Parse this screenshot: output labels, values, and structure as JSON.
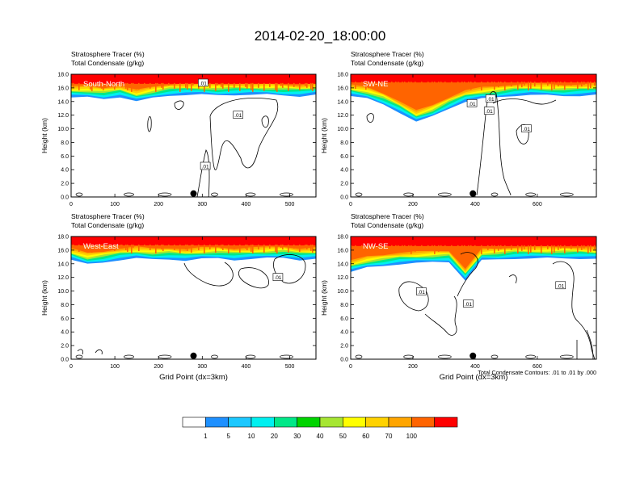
{
  "figure": {
    "title": "2014-02-20_18:00:00",
    "footnote": "Total Condensate Contours: .01 to .01 by .000",
    "xlabel": "Grid Point (dx=3km)"
  },
  "colorbar": {
    "colors": [
      "#ffffff",
      "#1e90ff",
      "#1cc8ff",
      "#00f0f0",
      "#00e888",
      "#00d400",
      "#a6e632",
      "#ffff00",
      "#ffd200",
      "#ffa500",
      "#ff6400",
      "#ff0000"
    ],
    "labels": [
      "1",
      "5",
      "10",
      "20",
      "30",
      "40",
      "50",
      "60",
      "70",
      "100"
    ]
  },
  "chart_data": [
    {
      "type": "heatmap",
      "panel": "South-North",
      "subtitle_1": "Stratosphere Tracer   (%)",
      "subtitle_2": "Total Condensate   (g/kg)",
      "ylabel": "Height (km)",
      "xlabel": "",
      "xlim": [
        0,
        560
      ],
      "ylim": [
        0,
        18
      ],
      "xticks": [
        "0",
        "100",
        "200",
        "300",
        "400",
        "500"
      ],
      "yticks": [
        "0.0",
        "2.0",
        "4.0",
        "6.0",
        "8.0",
        "10.0",
        "12.0",
        "14.0",
        "16.0",
        "18.0"
      ],
      "contour_labels": [
        {
          "text": ".01",
          "x": 302,
          "y": 16.7
        },
        {
          "text": ".01",
          "x": 382,
          "y": 12.0
        },
        {
          "text": ".01",
          "x": 307,
          "y": 4.5
        }
      ],
      "marker_x": 280,
      "tracer_band": {
        "base_km": [
          15.2,
          15.2,
          15.0,
          15.3,
          14.6,
          15.1,
          15.5,
          15.6,
          15.6,
          15.5,
          15.6,
          15.6,
          15.6,
          15.5,
          15.4,
          15.6
        ],
        "red_from_km": 16.6
      }
    },
    {
      "type": "heatmap",
      "panel": "SW-NE",
      "subtitle_1": "Stratosphere Tracer   (%)",
      "subtitle_2": "Total Condensate   (g/kg)",
      "ylabel": "Height (km)",
      "xlabel": "",
      "xlim": [
        0,
        790
      ],
      "ylim": [
        0,
        18
      ],
      "xticks": [
        "0",
        "200",
        "400",
        "600"
      ],
      "yticks": [
        "0.0",
        "2.0",
        "4.0",
        "6.0",
        "8.0",
        "10.0",
        "12.0",
        "14.0",
        "16.0",
        "18.0"
      ],
      "contour_labels": [
        {
          "text": ".01",
          "x": 390,
          "y": 13.7
        },
        {
          "text": ".01",
          "x": 450,
          "y": 14.4
        },
        {
          "text": ".01",
          "x": 445,
          "y": 12.6
        },
        {
          "text": ".01",
          "x": 565,
          "y": 10.0
        }
      ],
      "marker_x": 393,
      "tracer_band": {
        "base_km": [
          15.4,
          15.0,
          14.2,
          13.0,
          11.6,
          12.4,
          13.6,
          14.6,
          15.0,
          15.2,
          15.5,
          15.6,
          15.5,
          15.4,
          15.5,
          15.6
        ],
        "red_from_km": 16.8
      }
    },
    {
      "type": "heatmap",
      "panel": "West-East",
      "subtitle_1": "Stratosphere Tracer   (%)",
      "subtitle_2": "Total Condensate   (g/kg)",
      "ylabel": "Height (km)",
      "xlabel": "Grid Point (dx=3km)",
      "xlim": [
        0,
        560
      ],
      "ylim": [
        0,
        18
      ],
      "xticks": [
        "0",
        "100",
        "200",
        "300",
        "400",
        "500"
      ],
      "yticks": [
        "0.0",
        "2.0",
        "4.0",
        "6.0",
        "8.0",
        "10.0",
        "12.0",
        "14.0",
        "16.0",
        "18.0"
      ],
      "contour_labels": [
        {
          "text": ".01",
          "x": 473,
          "y": 12.0
        }
      ],
      "marker_x": 280,
      "tracer_band": {
        "base_km": [
          15.2,
          14.5,
          14.8,
          15.2,
          15.4,
          15.2,
          15.3,
          15.1,
          15.3,
          15.4,
          15.2,
          15.3,
          15.4,
          15.5,
          15.2,
          15.3
        ],
        "red_from_km": 16.7
      }
    },
    {
      "type": "heatmap",
      "panel": "NW-SE",
      "subtitle_1": "Stratosphere Tracer   (%)",
      "subtitle_2": "Total Condensate   (g/kg)",
      "ylabel": "Height (km)",
      "xlabel": "Grid Point (dx=3km)",
      "xlim": [
        0,
        790
      ],
      "ylim": [
        0,
        18
      ],
      "xticks": [
        "0",
        "200",
        "400",
        "600"
      ],
      "yticks": [
        "0.0",
        "2.0",
        "4.0",
        "6.0",
        "8.0",
        "10.0",
        "12.0",
        "14.0",
        "16.0",
        "18.0"
      ],
      "contour_labels": [
        {
          "text": ".01",
          "x": 227,
          "y": 9.9
        },
        {
          "text": ".01",
          "x": 378,
          "y": 8.1
        },
        {
          "text": ".01",
          "x": 675,
          "y": 10.8
        }
      ],
      "marker_x": 393,
      "tracer_band": {
        "base_km": [
          13.4,
          14.0,
          14.3,
          14.6,
          14.7,
          14.8,
          14.9,
          12.2,
          15.1,
          15.2,
          15.4,
          15.4,
          15.4,
          15.4,
          15.4,
          15.3
        ],
        "red_from_km": 16.6
      }
    }
  ]
}
